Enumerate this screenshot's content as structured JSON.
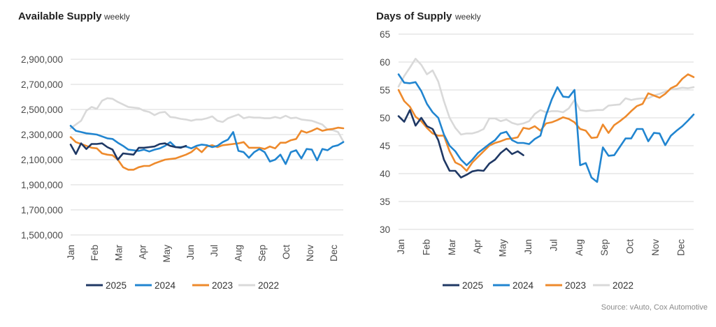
{
  "colors": {
    "2025": "#1f3864",
    "2024": "#2185d0",
    "2023": "#ee8a2c",
    "2022": "#d9d9d9"
  },
  "source": "Source: vAuto, Cox Automotive",
  "chart_data": [
    {
      "type": "line",
      "title": "Available Supply",
      "subtitle": "weekly",
      "x_labels": [
        "Jan",
        "Feb",
        "Mar",
        "Apr",
        "May",
        "Jun",
        "Jul",
        "Aug",
        "Sep",
        "Oct",
        "Nov",
        "Dec"
      ],
      "y_ticks": [
        "1,500,000",
        "1,700,000",
        "1,900,000",
        "2,100,000",
        "2,300,000",
        "2,500,000",
        "2,700,000",
        "2,900,000"
      ],
      "ylim": [
        1500000,
        3000000
      ],
      "grid": true,
      "legend_position": "bottom",
      "series": [
        {
          "name": "2025",
          "color": "#1f3864",
          "values": [
            2220000,
            2145000,
            2230000,
            2185000,
            2225000,
            2225000,
            2230000,
            2200000,
            2180000,
            2100000,
            2150000,
            2145000,
            2140000,
            2195000,
            2195000,
            2200000,
            2205000,
            2225000,
            2230000,
            2210000,
            2200000,
            2195000,
            2210000
          ]
        },
        {
          "name": "2024",
          "color": "#2185d0",
          "values": [
            2370000,
            2330000,
            2320000,
            2310000,
            2305000,
            2300000,
            2285000,
            2270000,
            2265000,
            2235000,
            2210000,
            2180000,
            2175000,
            2170000,
            2180000,
            2165000,
            2180000,
            2190000,
            2210000,
            2240000,
            2200000,
            2200000,
            2205000,
            2190000,
            2210000,
            2220000,
            2215000,
            2200000,
            2210000,
            2240000,
            2260000,
            2320000,
            2170000,
            2160000,
            2115000,
            2160000,
            2185000,
            2160000,
            2085000,
            2100000,
            2140000,
            2065000,
            2160000,
            2175000,
            2110000,
            2185000,
            2180000,
            2095000,
            2185000,
            2175000,
            2205000,
            2215000,
            2240000
          ]
        },
        {
          "name": "2023",
          "color": "#ee8a2c",
          "values": [
            2280000,
            2240000,
            2225000,
            2210000,
            2195000,
            2190000,
            2150000,
            2140000,
            2135000,
            2100000,
            2040000,
            2020000,
            2020000,
            2040000,
            2050000,
            2050000,
            2070000,
            2085000,
            2100000,
            2105000,
            2110000,
            2125000,
            2140000,
            2160000,
            2195000,
            2160000,
            2205000,
            2215000,
            2200000,
            2215000,
            2220000,
            2225000,
            2230000,
            2240000,
            2195000,
            2195000,
            2195000,
            2185000,
            2205000,
            2190000,
            2235000,
            2235000,
            2255000,
            2265000,
            2330000,
            2315000,
            2330000,
            2350000,
            2330000,
            2340000,
            2345000,
            2355000,
            2350000
          ]
        },
        {
          "name": "2022",
          "color": "#d9d9d9",
          "values": [
            2350000,
            2380000,
            2410000,
            2490000,
            2520000,
            2505000,
            2570000,
            2590000,
            2585000,
            2560000,
            2540000,
            2520000,
            2515000,
            2510000,
            2490000,
            2480000,
            2455000,
            2475000,
            2480000,
            2440000,
            2435000,
            2425000,
            2420000,
            2410000,
            2420000,
            2420000,
            2430000,
            2445000,
            2410000,
            2400000,
            2430000,
            2445000,
            2460000,
            2430000,
            2440000,
            2435000,
            2435000,
            2430000,
            2430000,
            2440000,
            2430000,
            2450000,
            2430000,
            2435000,
            2420000,
            2415000,
            2410000,
            2395000,
            2380000,
            2340000,
            2335000,
            2320000,
            2245000
          ]
        }
      ]
    },
    {
      "type": "line",
      "title": "Days of Supply",
      "subtitle": "weekly",
      "x_labels": [
        "Jan",
        "Feb",
        "Mar",
        "Apr",
        "May",
        "Jun",
        "Jul",
        "Aug",
        "Sep",
        "Oct",
        "Nov",
        "Dec"
      ],
      "y_ticks": [
        "30",
        "35",
        "40",
        "45",
        "50",
        "55",
        "60",
        "65"
      ],
      "ylim": [
        30,
        65
      ],
      "grid": true,
      "legend_position": "bottom",
      "series": [
        {
          "name": "2025",
          "color": "#1f3864",
          "values": [
            50.3,
            49.3,
            51.4,
            48.6,
            50,
            48.5,
            48,
            46,
            42.5,
            40.5,
            40.5,
            39.3,
            39.8,
            40.4,
            40.6,
            40.5,
            41.8,
            42.5,
            43.7,
            44.5,
            43.5,
            44,
            43.3
          ]
        },
        {
          "name": "2024",
          "color": "#2185d0",
          "values": [
            57.8,
            56.3,
            56.2,
            56.4,
            54.8,
            52.5,
            51,
            50,
            47,
            45,
            44,
            42.5,
            41.5,
            42.5,
            43.7,
            44.5,
            45.3,
            46,
            47.2,
            47.5,
            46,
            45.5,
            45.5,
            45.3,
            46.2,
            46.8,
            50.5,
            53.3,
            55.5,
            53.8,
            53.7,
            55,
            41.5,
            41.9,
            39.3,
            38.5,
            44.7,
            43.2,
            43.3,
            44.8,
            46.3,
            46.3,
            48,
            48,
            45.8,
            47.3,
            47.2,
            45.1,
            46.8,
            47.7,
            48.5,
            49.5,
            50.6
          ]
        },
        {
          "name": "2023",
          "color": "#ee8a2c",
          "values": [
            55,
            53,
            52,
            50.2,
            49.4,
            48.2,
            47.2,
            46.8,
            46.8,
            44,
            42,
            41.5,
            40.5,
            42,
            43,
            44,
            45,
            45.5,
            45.8,
            46.2,
            46.3,
            46.5,
            48.2,
            48,
            48.5,
            47.7,
            49,
            49.2,
            49.6,
            50.1,
            49.8,
            49.2,
            48,
            47.7,
            46.4,
            46.5,
            48.8,
            47.3,
            48.7,
            49.4,
            50.2,
            51.2,
            52.1,
            52.5,
            54.4,
            54,
            53.6,
            54.3,
            55.3,
            55.8,
            57,
            57.8,
            57.3
          ]
        },
        {
          "name": "2022",
          "color": "#d9d9d9",
          "values": [
            55.6,
            57.5,
            59,
            60.6,
            59.5,
            57.8,
            58.5,
            56.5,
            53,
            50,
            48.2,
            47,
            47.2,
            47.2,
            47.5,
            48,
            49.9,
            49.9,
            49.4,
            49.7,
            49.1,
            48.8,
            49,
            49.4,
            50.7,
            51.4,
            51,
            51.2,
            51.2,
            51,
            51.7,
            53.2,
            51.4,
            51.2,
            51.3,
            51.4,
            51.4,
            52.2,
            52.3,
            52.4,
            53.5,
            53.2,
            53.4,
            53.5,
            53.5,
            54,
            54.3,
            54.7,
            55.1,
            55.2,
            55.4,
            55.3,
            55.5
          ]
        }
      ]
    }
  ]
}
